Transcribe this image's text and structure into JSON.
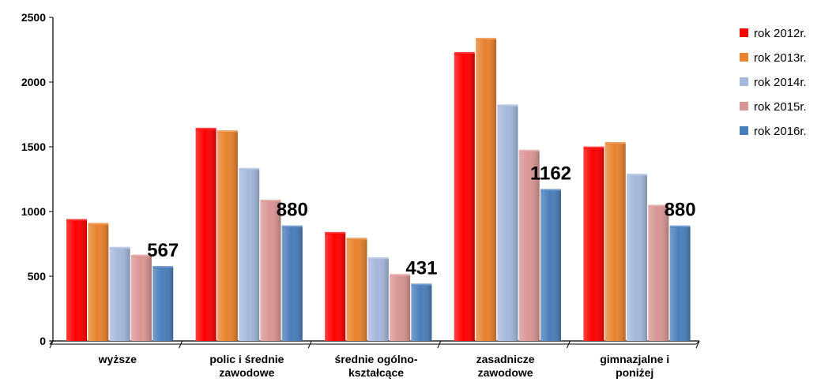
{
  "chart_data": {
    "type": "bar",
    "categories": [
      [
        "wyższe"
      ],
      [
        "polic i średnie",
        "zawodowe"
      ],
      [
        "średnie ogólno-",
        "kształcące"
      ],
      [
        "zasadnicze",
        "zawodowe"
      ],
      [
        "gimnazjalne i",
        "poniżej"
      ]
    ],
    "series": [
      {
        "name": "rok 2012r.",
        "color": "#ff0000",
        "values": [
          930,
          1635,
          830,
          2220,
          1490
        ]
      },
      {
        "name": "rok 2013r.",
        "color": "#e8822e",
        "values": [
          900,
          1615,
          785,
          2330,
          1525
        ]
      },
      {
        "name": "rok 2014r.",
        "color": "#a5b8dc",
        "values": [
          715,
          1325,
          635,
          1815,
          1280
        ]
      },
      {
        "name": "rok 2015r.",
        "color": "#d99594",
        "values": [
          655,
          1080,
          505,
          1465,
          1040
        ]
      },
      {
        "name": "rok 2016r.",
        "color": "#4a7ebb",
        "values": [
          567,
          880,
          431,
          1162,
          880
        ]
      }
    ],
    "data_labels": {
      "series_index": 4,
      "values": [
        "567",
        "880",
        "431",
        "1162",
        "880"
      ]
    },
    "y_ticks": [
      "0",
      "500",
      "1000",
      "1500",
      "2000",
      "2500"
    ],
    "ylim": [
      0,
      2500
    ],
    "legend_position": "right",
    "grid": false
  }
}
